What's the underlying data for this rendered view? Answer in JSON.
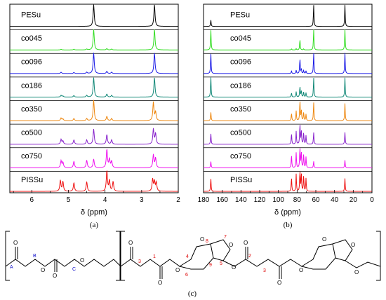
{
  "colors": {
    "PESu": "#000000",
    "co045": "#33dd22",
    "co096": "#1a1ae6",
    "co186": "#118877",
    "co350": "#ee8811",
    "co500": "#8822cc",
    "co750": "#ee11ee",
    "PISSu": "#ee1111",
    "atom_label_red": "#dd0000",
    "atom_label_blue": "#1111cc"
  },
  "chart_data": [
    {
      "type": "line",
      "panel_label": "(a)",
      "xlabel": "δ (ppm)",
      "xlim": [
        6.6,
        2.0
      ],
      "x_ticks": [
        "6",
        "5",
        "4",
        "3",
        "2"
      ],
      "series": [
        {
          "name": "PESu",
          "peaks": [
            {
              "ppm": 4.31,
              "h": 1.0
            },
            {
              "ppm": 2.65,
              "h": 1.0
            }
          ]
        },
        {
          "name": "co045",
          "peaks": [
            {
              "ppm": 5.2,
              "h": 0.03
            },
            {
              "ppm": 4.85,
              "h": 0.03
            },
            {
              "ppm": 4.5,
              "h": 0.04
            },
            {
              "ppm": 4.31,
              "h": 0.95
            },
            {
              "ppm": 3.95,
              "h": 0.06
            },
            {
              "ppm": 3.82,
              "h": 0.04
            },
            {
              "ppm": 2.65,
              "h": 0.95
            }
          ]
        },
        {
          "name": "co096",
          "peaks": [
            {
              "ppm": 5.2,
              "h": 0.06
            },
            {
              "ppm": 4.85,
              "h": 0.05
            },
            {
              "ppm": 4.5,
              "h": 0.06
            },
            {
              "ppm": 4.31,
              "h": 0.95
            },
            {
              "ppm": 3.95,
              "h": 0.1
            },
            {
              "ppm": 3.82,
              "h": 0.06
            },
            {
              "ppm": 2.65,
              "h": 0.95
            }
          ]
        },
        {
          "name": "co186",
          "peaks": [
            {
              "ppm": 5.2,
              "h": 0.08
            },
            {
              "ppm": 5.15,
              "h": 0.05
            },
            {
              "ppm": 4.85,
              "h": 0.07
            },
            {
              "ppm": 4.5,
              "h": 0.08
            },
            {
              "ppm": 4.31,
              "h": 0.9
            },
            {
              "ppm": 3.95,
              "h": 0.14
            },
            {
              "ppm": 3.82,
              "h": 0.08
            },
            {
              "ppm": 2.65,
              "h": 0.9
            }
          ]
        },
        {
          "name": "co350",
          "peaks": [
            {
              "ppm": 5.2,
              "h": 0.12
            },
            {
              "ppm": 5.15,
              "h": 0.08
            },
            {
              "ppm": 4.85,
              "h": 0.1
            },
            {
              "ppm": 4.5,
              "h": 0.1
            },
            {
              "ppm": 4.31,
              "h": 0.95
            },
            {
              "ppm": 3.95,
              "h": 0.2
            },
            {
              "ppm": 3.82,
              "h": 0.1
            },
            {
              "ppm": 2.68,
              "h": 0.85
            },
            {
              "ppm": 2.62,
              "h": 0.4
            }
          ]
        },
        {
          "name": "co500",
          "peaks": [
            {
              "ppm": 5.2,
              "h": 0.22
            },
            {
              "ppm": 5.15,
              "h": 0.15
            },
            {
              "ppm": 4.85,
              "h": 0.2
            },
            {
              "ppm": 4.5,
              "h": 0.2
            },
            {
              "ppm": 4.31,
              "h": 0.7
            },
            {
              "ppm": 3.95,
              "h": 0.45
            },
            {
              "ppm": 3.82,
              "h": 0.2
            },
            {
              "ppm": 2.68,
              "h": 0.7
            },
            {
              "ppm": 2.62,
              "h": 0.5
            }
          ]
        },
        {
          "name": "co750",
          "peaks": [
            {
              "ppm": 5.2,
              "h": 0.32
            },
            {
              "ppm": 5.15,
              "h": 0.25
            },
            {
              "ppm": 4.85,
              "h": 0.3
            },
            {
              "ppm": 4.5,
              "h": 0.35
            },
            {
              "ppm": 4.31,
              "h": 0.4
            },
            {
              "ppm": 3.95,
              "h": 0.85
            },
            {
              "ppm": 3.88,
              "h": 0.4
            },
            {
              "ppm": 3.82,
              "h": 0.3
            },
            {
              "ppm": 2.68,
              "h": 0.6
            },
            {
              "ppm": 2.62,
              "h": 0.45
            }
          ]
        },
        {
          "name": "PISSu",
          "peaks": [
            {
              "ppm": 5.22,
              "h": 0.5
            },
            {
              "ppm": 5.15,
              "h": 0.45
            },
            {
              "ppm": 4.85,
              "h": 0.4
            },
            {
              "ppm": 4.5,
              "h": 0.45
            },
            {
              "ppm": 3.95,
              "h": 0.95
            },
            {
              "ppm": 3.88,
              "h": 0.5
            },
            {
              "ppm": 3.78,
              "h": 0.45
            },
            {
              "ppm": 2.7,
              "h": 0.55
            },
            {
              "ppm": 2.65,
              "h": 0.45
            },
            {
              "ppm": 2.6,
              "h": 0.4
            }
          ]
        }
      ]
    },
    {
      "type": "line",
      "panel_label": "(b)",
      "xlabel": "δ (ppm)",
      "xlim": [
        180,
        0
      ],
      "x_ticks": [
        "180",
        "170",
        "160",
        "150",
        "140",
        "130",
        "120",
        "110",
        "100",
        "90",
        "80",
        "70",
        "60",
        "50",
        "40",
        "30",
        "20",
        "10",
        "0"
      ],
      "x_tick_labels_shown": [
        "180",
        "160",
        "140",
        "120",
        "100",
        "80",
        "60",
        "40",
        "20",
        "0"
      ],
      "series": [
        {
          "name": "PESu",
          "peaks": [
            {
              "ppm": 172.2,
              "h": 0.3
            },
            {
              "ppm": 62.3,
              "h": 1.0
            },
            {
              "ppm": 28.9,
              "h": 1.0
            }
          ]
        },
        {
          "name": "co045",
          "peaks": [
            {
              "ppm": 172.2,
              "h": 0.95
            },
            {
              "ppm": 86,
              "h": 0.05
            },
            {
              "ppm": 81,
              "h": 0.06
            },
            {
              "ppm": 77,
              "h": 0.5
            },
            {
              "ppm": 73,
              "h": 0.05
            },
            {
              "ppm": 62.3,
              "h": 0.95
            },
            {
              "ppm": 28.9,
              "h": 0.95
            }
          ]
        },
        {
          "name": "co096",
          "peaks": [
            {
              "ppm": 172.2,
              "h": 0.95
            },
            {
              "ppm": 86,
              "h": 0.12
            },
            {
              "ppm": 81,
              "h": 0.15
            },
            {
              "ppm": 77,
              "h": 0.7
            },
            {
              "ppm": 75.5,
              "h": 0.2
            },
            {
              "ppm": 73,
              "h": 0.15
            },
            {
              "ppm": 70.5,
              "h": 0.12
            },
            {
              "ppm": 62.3,
              "h": 0.95
            },
            {
              "ppm": 28.9,
              "h": 0.95
            }
          ]
        },
        {
          "name": "co186",
          "peaks": [
            {
              "ppm": 172.2,
              "h": 0.95
            },
            {
              "ppm": 86,
              "h": 0.2
            },
            {
              "ppm": 81,
              "h": 0.25
            },
            {
              "ppm": 77,
              "h": 0.5
            },
            {
              "ppm": 75.5,
              "h": 0.3
            },
            {
              "ppm": 73,
              "h": 0.25
            },
            {
              "ppm": 70.5,
              "h": 0.2
            },
            {
              "ppm": 62.3,
              "h": 0.9
            },
            {
              "ppm": 28.9,
              "h": 0.9
            }
          ]
        },
        {
          "name": "co350",
          "peaks": [
            {
              "ppm": 172.2,
              "h": 0.4
            },
            {
              "ppm": 86,
              "h": 0.35
            },
            {
              "ppm": 81,
              "h": 0.45
            },
            {
              "ppm": 77,
              "h": 0.95
            },
            {
              "ppm": 75.5,
              "h": 0.5
            },
            {
              "ppm": 73,
              "h": 0.4
            },
            {
              "ppm": 70.5,
              "h": 0.3
            },
            {
              "ppm": 62.3,
              "h": 0.85
            },
            {
              "ppm": 28.9,
              "h": 0.8
            }
          ]
        },
        {
          "name": "co500",
          "peaks": [
            {
              "ppm": 172.2,
              "h": 0.5
            },
            {
              "ppm": 86,
              "h": 0.5
            },
            {
              "ppm": 81,
              "h": 0.6
            },
            {
              "ppm": 77,
              "h": 0.95
            },
            {
              "ppm": 75.5,
              "h": 0.65
            },
            {
              "ppm": 73,
              "h": 0.55
            },
            {
              "ppm": 70.5,
              "h": 0.4
            },
            {
              "ppm": 62.3,
              "h": 0.55
            },
            {
              "ppm": 28.9,
              "h": 0.55
            }
          ]
        },
        {
          "name": "co750",
          "peaks": [
            {
              "ppm": 172.2,
              "h": 0.3
            },
            {
              "ppm": 86,
              "h": 0.6
            },
            {
              "ppm": 81,
              "h": 0.7
            },
            {
              "ppm": 77,
              "h": 0.95
            },
            {
              "ppm": 75.5,
              "h": 0.75
            },
            {
              "ppm": 73,
              "h": 0.65
            },
            {
              "ppm": 70.5,
              "h": 0.5
            },
            {
              "ppm": 62.3,
              "h": 0.3
            },
            {
              "ppm": 28.9,
              "h": 0.35
            }
          ]
        },
        {
          "name": "PISSu",
          "peaks": [
            {
              "ppm": 172.2,
              "h": 0.6
            },
            {
              "ppm": 86,
              "h": 0.65
            },
            {
              "ppm": 81,
              "h": 0.8
            },
            {
              "ppm": 77,
              "h": 0.95
            },
            {
              "ppm": 75.5,
              "h": 0.85
            },
            {
              "ppm": 73,
              "h": 0.75
            },
            {
              "ppm": 70.5,
              "h": 0.6
            },
            {
              "ppm": 28.9,
              "h": 0.6
            }
          ]
        }
      ]
    }
  ],
  "structure": {
    "caption": "(c)",
    "atom_labels": {
      "A": "A",
      "B": "B",
      "C": "C",
      "n1": "1",
      "n2": "2",
      "n3": "3",
      "n4": "4",
      "n5": "5",
      "n6": "6",
      "n7": "7",
      "n8": "8",
      "n9": "9",
      "n2b": "2",
      "n3b": "3"
    },
    "atom_text": {
      "O": "O"
    }
  }
}
